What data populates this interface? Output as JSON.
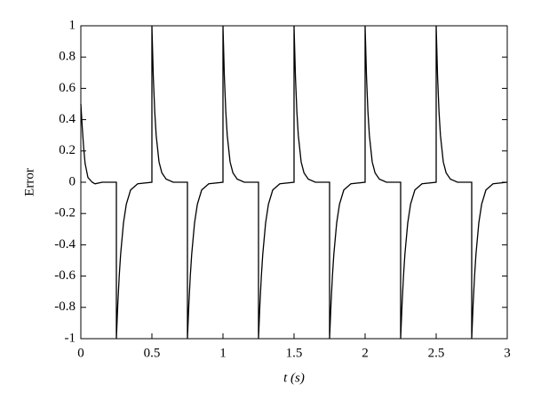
{
  "chart_data": {
    "type": "line",
    "xlabel": "t (s)",
    "ylabel": "Error",
    "xlim": [
      0,
      3
    ],
    "ylim": [
      -1,
      1
    ],
    "xticks": [
      0,
      0.5,
      1,
      1.5,
      2,
      2.5,
      3
    ],
    "yticks": [
      -1,
      -0.8,
      -0.6,
      -0.4,
      -0.2,
      0,
      0.2,
      0.4,
      0.6,
      0.8,
      1
    ],
    "grid": false,
    "series": [
      {
        "color": "#000000",
        "x": [
          0,
          0.01,
          0.02,
          0.03,
          0.05,
          0.08,
          0.1,
          0.15,
          0.25,
          0.25,
          0.26,
          0.27,
          0.28,
          0.3,
          0.32,
          0.35,
          0.4,
          0.5,
          0.5,
          0.51,
          0.52,
          0.53,
          0.55,
          0.57,
          0.6,
          0.65,
          0.75,
          0.75,
          0.76,
          0.77,
          0.78,
          0.8,
          0.82,
          0.85,
          0.9,
          1,
          1,
          1.01,
          1.02,
          1.03,
          1.05,
          1.07,
          1.1,
          1.15,
          1.25,
          1.25,
          1.26,
          1.27,
          1.28,
          1.3,
          1.32,
          1.35,
          1.4,
          1.5,
          1.5,
          1.51,
          1.52,
          1.53,
          1.55,
          1.57,
          1.6,
          1.65,
          1.75,
          1.75,
          1.76,
          1.77,
          1.78,
          1.8,
          1.82,
          1.85,
          1.9,
          2,
          2,
          2.01,
          2.02,
          2.03,
          2.05,
          2.07,
          2.1,
          2.15,
          2.25,
          2.25,
          2.26,
          2.27,
          2.28,
          2.3,
          2.32,
          2.35,
          2.4,
          2.5,
          2.5,
          2.51,
          2.52,
          2.53,
          2.55,
          2.57,
          2.6,
          2.65,
          2.75,
          2.75,
          2.76,
          2.77,
          2.78,
          2.8,
          2.82,
          2.85,
          2.9,
          3
        ],
        "values": [
          0.5,
          0.35,
          0.22,
          0.12,
          0.03,
          0,
          -0.01,
          0,
          0,
          -1,
          -0.78,
          -0.6,
          -0.46,
          -0.26,
          -0.14,
          -0.05,
          -0.01,
          0,
          1,
          0.67,
          0.45,
          0.3,
          0.13,
          0.06,
          0.02,
          0,
          0,
          -1,
          -0.78,
          -0.6,
          -0.46,
          -0.26,
          -0.14,
          -0.05,
          -0.01,
          0,
          1,
          0.67,
          0.45,
          0.3,
          0.13,
          0.06,
          0.02,
          0,
          0,
          -1,
          -0.78,
          -0.6,
          -0.46,
          -0.26,
          -0.14,
          -0.05,
          -0.01,
          0,
          1,
          0.67,
          0.45,
          0.3,
          0.13,
          0.06,
          0.02,
          0,
          0,
          -1,
          -0.78,
          -0.6,
          -0.46,
          -0.26,
          -0.14,
          -0.05,
          -0.01,
          0,
          1,
          0.67,
          0.45,
          0.3,
          0.13,
          0.06,
          0.02,
          0,
          0,
          -1,
          -0.78,
          -0.6,
          -0.46,
          -0.26,
          -0.14,
          -0.05,
          -0.01,
          0,
          1,
          0.67,
          0.45,
          0.3,
          0.13,
          0.06,
          0.02,
          0,
          0,
          -1,
          -0.78,
          -0.6,
          -0.46,
          -0.26,
          -0.14,
          -0.05,
          -0.01,
          0
        ]
      }
    ]
  }
}
